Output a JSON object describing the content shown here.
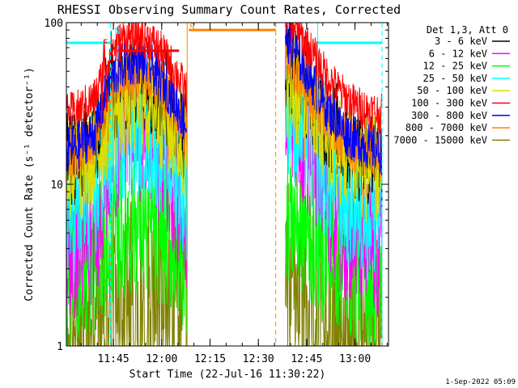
{
  "chart_data": {
    "type": "line",
    "title": "RHESSI Observing Summary Count Rates, Corrected",
    "xlabel": "Start Time (22-Jul-16 11:30:22)",
    "ylabel": "Corrected Count Rate (s⁻¹ detector⁻¹)",
    "ylog": true,
    "ylim": [
      1,
      100
    ],
    "xlim_minutes": [
      0,
      100
    ],
    "x_ticks": [
      {
        "label": "11:45",
        "minute": 14.6
      },
      {
        "label": "12:00",
        "minute": 29.6
      },
      {
        "label": "12:15",
        "minute": 44.6
      },
      {
        "label": "12:30",
        "minute": 59.6
      },
      {
        "label": "12:45",
        "minute": 74.6
      },
      {
        "label": "13:00",
        "minute": 89.6
      }
    ],
    "y_ticks": [
      {
        "label": "1",
        "value": 1
      },
      {
        "label": "10",
        "value": 10
      },
      {
        "label": "100",
        "value": 100
      }
    ],
    "legend_header": "Det 1,3, Att 0",
    "legend_position": "outside-right",
    "series": [
      {
        "name": "3 - 6 keV",
        "color": "#000000"
      },
      {
        "name": "6 - 12 keV",
        "color": "#ff00ff"
      },
      {
        "name": "12 - 25 keV",
        "color": "#00ff00"
      },
      {
        "name": "25 - 50 keV",
        "color": "#00ffff"
      },
      {
        "name": "50 - 100 keV",
        "color": "#dddd00"
      },
      {
        "name": "100 - 300 keV",
        "color": "#ff0000"
      },
      {
        "name": "300 - 800 keV",
        "color": "#0000ff"
      },
      {
        "name": "800 - 7000 keV",
        "color": "#ff8000"
      },
      {
        "name": "7000 - 15000 keV",
        "color": "#808000"
      }
    ],
    "segments": [
      {
        "start_minute": 0,
        "end_minute": 37.5
      },
      {
        "start_minute": 68,
        "end_minute": 98
      }
    ],
    "profiles": {
      "seg1_peak": [
        [
          0,
          0.0
        ],
        [
          4,
          0.03
        ],
        [
          9,
          0.1
        ],
        [
          12,
          0.28
        ],
        [
          14,
          0.38
        ],
        [
          18,
          0.45
        ],
        [
          22,
          0.47
        ],
        [
          26,
          0.44
        ],
        [
          30,
          0.36
        ],
        [
          33,
          0.28
        ],
        [
          36,
          0.18
        ],
        [
          37.5,
          0.12
        ]
      ],
      "seg2_decay": [
        [
          68,
          0.6
        ],
        [
          71,
          0.52
        ],
        [
          75,
          0.4
        ],
        [
          80,
          0.25
        ],
        [
          85,
          0.13
        ],
        [
          90,
          0.05
        ],
        [
          95,
          0.02
        ],
        [
          98,
          0.0
        ]
      ]
    },
    "bands": [
      {
        "series": "7000 - 15000 keV",
        "base": 1.7,
        "spread": 0.55,
        "amp": 0.55,
        "bottom": 1.0
      },
      {
        "series": "12 - 25 keV",
        "base": 2.7,
        "spread": 0.45,
        "amp": 0.7
      },
      {
        "series": "6 - 12 keV",
        "base": 3.6,
        "spread": 0.45,
        "amp": 1.7
      },
      {
        "series": "25 - 50 keV",
        "base": 6.5,
        "spread": 0.45,
        "amp": 1.2
      },
      {
        "series": "3 - 6 keV",
        "base": 14.5,
        "spread": 0.32,
        "amp": 1.05
      },
      {
        "series": "50 - 100 keV",
        "base": 12.0,
        "spread": 0.35,
        "amp": 0.95
      },
      {
        "series": "800 - 7000 keV",
        "base": 14.5,
        "spread": 0.17,
        "amp": 1.1
      },
      {
        "series": "300 - 800 keV",
        "base": 16.0,
        "spread": 0.15,
        "amp": 1.2
      },
      {
        "series": "100 - 300 keV",
        "base": 27.0,
        "spread": 0.13,
        "amp": 1.05
      }
    ],
    "spike": {
      "minute": 11.7,
      "width_minutes": 0.9,
      "value": 78
    },
    "annotations": {
      "saa_bars": [
        {
          "start_minute": 0,
          "end_minute": 13.7,
          "value": 75,
          "color": "#00ffff"
        },
        {
          "start_minute": 78,
          "end_minute": 98,
          "value": 75,
          "color": "#00ffff"
        }
      ],
      "flare_bar": {
        "start_minute": 16,
        "end_minute": 35,
        "value": 67,
        "color": "#ff0000"
      },
      "s_bar": {
        "start_minute": 38,
        "end_minute": 65,
        "value": 90,
        "color": "#ff8000"
      },
      "marker_lines": [
        {
          "minute": 13.7,
          "color": "#00ffff",
          "style": "dashed"
        },
        {
          "minute": 37.5,
          "color": "#ff8000",
          "style": "solid"
        },
        {
          "minute": 65.0,
          "color": "#ff8000",
          "style": "dashed"
        },
        {
          "minute": 78.0,
          "color": "#00ffff",
          "style": "solid"
        },
        {
          "minute": 98.0,
          "color": "#00ffff",
          "style": "dashed"
        }
      ],
      "labels": [
        {
          "text": "N",
          "minute": 15.0,
          "value": 85,
          "color": "#00ffff"
        },
        {
          "text": "S",
          "minute": 38.2,
          "value": 90,
          "color": "#ff8000"
        },
        {
          "text": "F",
          "minute": 11.3,
          "value": 72,
          "color": "#ff0000"
        }
      ]
    },
    "footer_date": "1-Sep-2022 05:09"
  }
}
